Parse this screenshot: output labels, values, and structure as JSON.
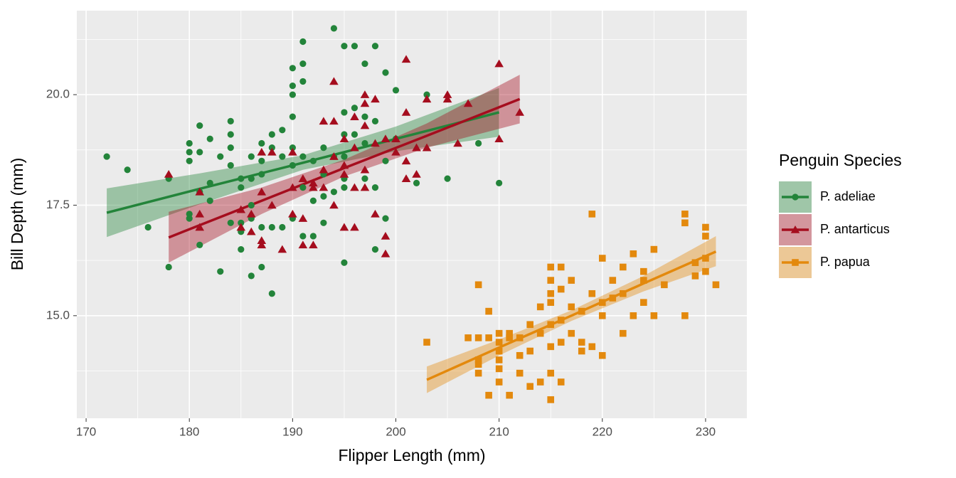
{
  "chart_data": {
    "type": "scatter",
    "x_label": "Flipper Length (mm)",
    "y_label": "Bill Depth (mm)",
    "xlim": [
      169.1,
      234.0
    ],
    "ylim": [
      12.68,
      21.9
    ],
    "xticks": [
      170,
      180,
      190,
      200,
      210,
      220,
      230
    ],
    "yticks": [
      {
        "value": 15,
        "label": "15.0"
      },
      {
        "value": 17.5,
        "label": "17.5"
      },
      {
        "value": 20,
        "label": "20.0"
      }
    ],
    "grid": true,
    "minor_grid": true,
    "legend": {
      "title": "Penguin Species",
      "position": "right"
    },
    "series": [
      {
        "name": "P. adeliae",
        "color": "#23843a",
        "marker": "circle",
        "x": [
          172,
          174,
          176,
          178,
          178,
          180,
          180,
          180,
          180,
          180,
          181,
          181,
          181,
          181,
          182,
          182,
          182,
          183,
          183,
          184,
          184,
          184,
          184,
          184,
          185,
          185,
          185,
          185,
          185,
          186,
          186,
          186,
          186,
          186,
          187,
          187,
          187,
          187,
          187,
          188,
          188,
          188,
          188,
          189,
          189,
          189,
          190,
          190,
          190,
          190,
          190,
          190,
          190,
          191,
          191,
          191,
          191,
          191,
          191,
          192,
          192,
          192,
          193,
          193,
          193,
          193,
          194,
          194,
          194,
          195,
          195,
          195,
          195,
          195,
          195,
          195,
          196,
          196,
          196,
          197,
          197,
          197,
          197,
          198,
          198,
          198,
          198,
          199,
          199,
          199,
          200,
          200,
          202,
          203,
          205,
          208,
          210
        ],
        "values": [
          18.6,
          18.3,
          17.0,
          18.1,
          16.1,
          18.9,
          18.7,
          18.5,
          17.3,
          17.2,
          19.3,
          18.7,
          17.8,
          16.6,
          19.0,
          18.0,
          17.6,
          18.6,
          16.0,
          19.4,
          19.1,
          18.8,
          18.4,
          17.1,
          18.1,
          17.9,
          17.1,
          16.9,
          16.5,
          18.6,
          18.1,
          17.5,
          17.2,
          15.9,
          18.9,
          18.5,
          18.2,
          17.0,
          16.1,
          19.1,
          18.8,
          17.0,
          15.5,
          19.2,
          18.6,
          17.0,
          20.6,
          20.2,
          20.0,
          19.5,
          18.8,
          18.4,
          17.2,
          21.2,
          20.7,
          20.3,
          18.6,
          17.9,
          16.8,
          18.5,
          17.6,
          16.8,
          18.8,
          18.2,
          17.7,
          17.1,
          21.5,
          18.6,
          17.8,
          21.1,
          19.6,
          19.1,
          18.6,
          18.1,
          17.9,
          16.2,
          21.1,
          19.7,
          19.1,
          20.7,
          19.5,
          18.9,
          18.1,
          21.1,
          19.4,
          17.9,
          16.5,
          20.5,
          18.5,
          17.2,
          20.1,
          19.0,
          18.0,
          20.0,
          18.1,
          18.9,
          18.0
        ],
        "fit": {
          "x": [
            172,
            181,
            191,
            200,
            210
          ],
          "values": [
            17.33,
            17.87,
            18.46,
            19.0,
            19.6
          ],
          "lower": [
            16.78,
            17.52,
            18.3,
            18.72,
            19.05
          ],
          "upper": [
            17.88,
            18.22,
            18.63,
            19.28,
            20.15
          ]
        }
      },
      {
        "name": "P. antarticus",
        "color": "#a50d1e",
        "marker": "triangle",
        "x": [
          178,
          181,
          181,
          181,
          185,
          185,
          186,
          186,
          187,
          187,
          187,
          187,
          188,
          188,
          189,
          190,
          190,
          190,
          191,
          191,
          191,
          192,
          192,
          192,
          193,
          193,
          193,
          194,
          194,
          194,
          194,
          195,
          195,
          195,
          195,
          196,
          196,
          196,
          196,
          197,
          197,
          197,
          197,
          197,
          198,
          198,
          198,
          199,
          199,
          199,
          200,
          200,
          201,
          201,
          201,
          201,
          202,
          202,
          203,
          203,
          205,
          205,
          206,
          207,
          210,
          210,
          212
        ],
        "values": [
          18.2,
          17.8,
          17.3,
          17.0,
          17.4,
          17.0,
          17.3,
          16.9,
          18.7,
          17.8,
          16.7,
          16.6,
          18.7,
          17.5,
          16.5,
          18.7,
          17.9,
          17.3,
          18.1,
          17.2,
          16.6,
          18.0,
          17.9,
          16.6,
          19.4,
          18.3,
          17.9,
          20.3,
          19.4,
          18.6,
          17.5,
          19.0,
          18.4,
          18.2,
          17.0,
          19.5,
          18.8,
          17.9,
          17.0,
          20.0,
          19.8,
          19.3,
          18.3,
          17.9,
          19.9,
          18.9,
          17.3,
          19.0,
          16.8,
          16.4,
          19.0,
          18.7,
          20.8,
          19.6,
          18.5,
          18.1,
          18.2,
          18.8,
          19.9,
          18.8,
          20.0,
          19.9,
          18.9,
          19.8,
          20.7,
          19.0,
          19.6
        ],
        "fit": {
          "x": [
            178,
            187,
            195,
            203,
            212
          ],
          "values": [
            16.77,
            17.6,
            18.34,
            19.07,
            19.9
          ],
          "lower": [
            16.2,
            17.3,
            18.15,
            18.8,
            19.35
          ],
          "upper": [
            17.35,
            17.9,
            18.53,
            19.35,
            20.45
          ]
        }
      },
      {
        "name": "P. papua",
        "color": "#e3890d",
        "marker": "square",
        "x": [
          203,
          207,
          208,
          208,
          208,
          208,
          208,
          209,
          209,
          209,
          210,
          210,
          210,
          210,
          210,
          210,
          211,
          211,
          211,
          212,
          212,
          212,
          213,
          213,
          213,
          214,
          214,
          214,
          215,
          215,
          215,
          215,
          215,
          215,
          215,
          215,
          216,
          216,
          216,
          216,
          216,
          217,
          217,
          217,
          218,
          218,
          218,
          219,
          219,
          219,
          220,
          220,
          220,
          220,
          221,
          221,
          222,
          222,
          222,
          223,
          223,
          224,
          224,
          224,
          225,
          225,
          226,
          228,
          228,
          228,
          229,
          229,
          230,
          230,
          230,
          230,
          231
        ],
        "values": [
          14.4,
          14.5,
          15.7,
          14.5,
          14.0,
          13.9,
          13.7,
          15.1,
          14.5,
          13.2,
          14.6,
          14.4,
          14.2,
          14.0,
          13.8,
          13.5,
          14.6,
          14.5,
          13.2,
          14.5,
          14.1,
          13.7,
          14.8,
          14.2,
          13.4,
          15.2,
          14.6,
          13.5,
          16.1,
          15.8,
          15.5,
          15.3,
          14.8,
          14.3,
          13.7,
          13.1,
          16.1,
          15.6,
          14.9,
          14.4,
          13.5,
          15.8,
          15.2,
          14.6,
          15.1,
          14.4,
          14.2,
          17.3,
          15.5,
          14.3,
          16.3,
          15.3,
          15.0,
          14.1,
          15.8,
          15.4,
          16.1,
          15.5,
          14.6,
          16.4,
          15.0,
          16.0,
          15.3,
          15.8,
          16.5,
          15.0,
          15.7,
          17.3,
          17.1,
          15.0,
          16.2,
          15.9,
          17.0,
          16.8,
          16.3,
          16.0,
          15.7
        ],
        "fit": {
          "x": [
            203,
            210,
            217,
            224,
            231
          ],
          "values": [
            13.55,
            14.28,
            15.0,
            15.73,
            16.45
          ],
          "lower": [
            13.25,
            14.1,
            14.88,
            15.55,
            16.12
          ],
          "upper": [
            13.85,
            14.46,
            15.12,
            15.9,
            16.8
          ]
        }
      }
    ]
  }
}
